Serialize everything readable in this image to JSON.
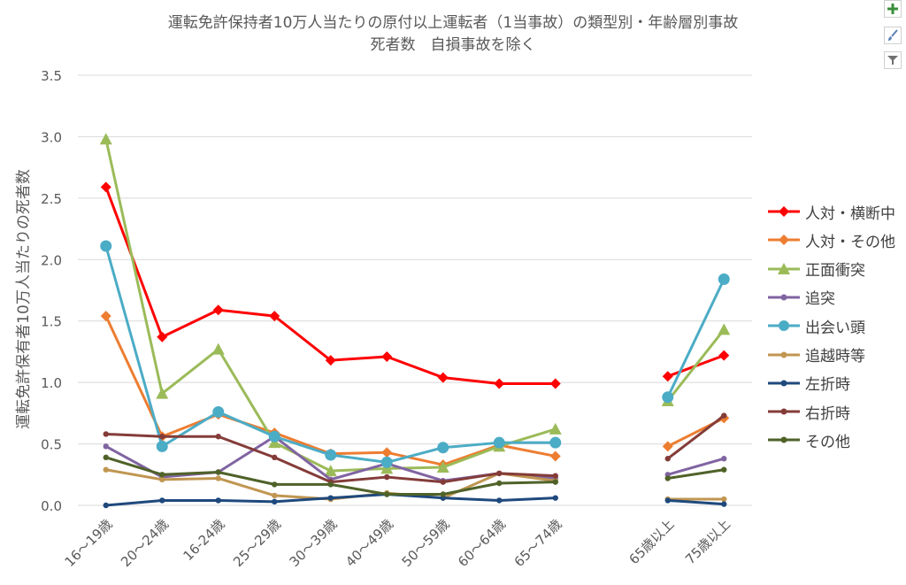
{
  "chart_data": {
    "type": "line",
    "title": "運転免許保持者10万人当たりの原付以上運転者（1当事故）の類型別・年齢層別事故",
    "subtitle": "死者数　自損事故を除く",
    "ylabel": "運転免許保有者10万人当たりの死者数",
    "xlabel": "",
    "ylim": [
      0,
      3.5
    ],
    "yticks": [
      "0.0",
      "0.5",
      "1.0",
      "1.5",
      "2.0",
      "2.5",
      "3.0",
      "3.5"
    ],
    "grid": true,
    "legend_position": "right",
    "categories": [
      "16～19歳",
      "20～24歳",
      "16-24歳",
      "25～29歳",
      "30～39歳",
      "40～49歳",
      "50～59歳",
      "60～64歳",
      "65～74歳",
      "",
      "65歳以上",
      "75歳以上"
    ],
    "series": [
      {
        "name": "人対・横断中",
        "color": "#ff0000",
        "marker": "diamond",
        "values": [
          2.59,
          1.37,
          1.59,
          1.54,
          1.18,
          1.21,
          1.04,
          0.99,
          0.99,
          null,
          1.05,
          1.22
        ]
      },
      {
        "name": "人対・その他",
        "color": "#ed7d31",
        "marker": "diamond",
        "values": [
          1.54,
          0.56,
          0.74,
          0.59,
          0.42,
          0.43,
          0.33,
          0.49,
          0.4,
          null,
          0.48,
          0.71
        ]
      },
      {
        "name": "正面衝突",
        "color": "#9bbb59",
        "marker": "triangle",
        "values": [
          2.98,
          0.91,
          1.27,
          0.51,
          0.28,
          0.3,
          0.31,
          0.48,
          0.62,
          null,
          0.85,
          1.43
        ]
      },
      {
        "name": "追突",
        "color": "#8064a2",
        "marker": "circle-small",
        "values": [
          0.48,
          0.23,
          0.27,
          0.56,
          0.21,
          0.34,
          0.2,
          0.26,
          0.22,
          null,
          0.25,
          0.38
        ]
      },
      {
        "name": "出会い頭",
        "color": "#4bacc6",
        "marker": "circle",
        "values": [
          2.11,
          0.48,
          0.76,
          0.56,
          0.41,
          0.35,
          0.47,
          0.51,
          0.51,
          null,
          0.88,
          1.84
        ]
      },
      {
        "name": "追越時等",
        "color": "#c09651",
        "marker": "circle-small",
        "values": [
          0.29,
          0.21,
          0.22,
          0.08,
          0.05,
          0.1,
          0.06,
          0.26,
          0.2,
          null,
          0.05,
          0.05
        ]
      },
      {
        "name": "左折時",
        "color": "#1f497d",
        "marker": "circle-small",
        "values": [
          0.0,
          0.04,
          0.04,
          0.03,
          0.06,
          0.09,
          0.06,
          0.04,
          0.06,
          null,
          0.04,
          0.01
        ]
      },
      {
        "name": "右折時",
        "color": "#843c39",
        "marker": "circle-small",
        "values": [
          0.58,
          0.56,
          0.56,
          0.39,
          0.19,
          0.23,
          0.19,
          0.26,
          0.24,
          null,
          0.38,
          0.73
        ]
      },
      {
        "name": "その他",
        "color": "#4f6228",
        "marker": "circle-small",
        "values": [
          0.39,
          0.25,
          0.27,
          0.17,
          0.17,
          0.09,
          0.09,
          0.18,
          0.19,
          null,
          0.22,
          0.29
        ]
      }
    ]
  },
  "toolbar": {
    "add_icon": "plus-icon",
    "style_icon": "brush-icon",
    "filter_icon": "filter-icon"
  }
}
